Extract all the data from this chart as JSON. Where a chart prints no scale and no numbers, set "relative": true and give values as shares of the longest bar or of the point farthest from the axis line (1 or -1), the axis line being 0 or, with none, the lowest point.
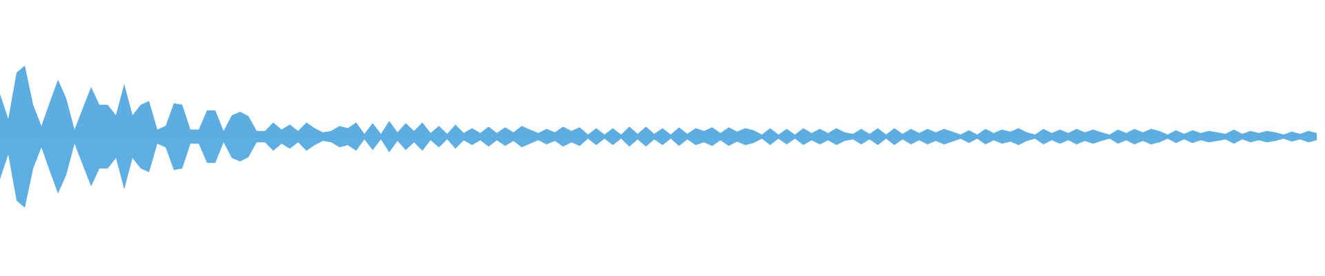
{
  "chart_data": {
    "type": "area",
    "relative": true,
    "categories": [
      null,
      null,
      null,
      null,
      null,
      null,
      null,
      null,
      null,
      null,
      null,
      null,
      null,
      null,
      null,
      null,
      null,
      null,
      null,
      null,
      null,
      null,
      null,
      null,
      null,
      null,
      null,
      null,
      null,
      null,
      null,
      null,
      null,
      null,
      null,
      null,
      null,
      null,
      null,
      null,
      null,
      null,
      null,
      null,
      null,
      null,
      null,
      null,
      null,
      null,
      null,
      null,
      null,
      null,
      null,
      null,
      null,
      null,
      null,
      null,
      null,
      null,
      null,
      null,
      null,
      null,
      null,
      null,
      null,
      null,
      null,
      null,
      null,
      null,
      null,
      null,
      null,
      null,
      null,
      null,
      null,
      null,
      null,
      null,
      null,
      null,
      null,
      null,
      null,
      null,
      null,
      null,
      null,
      null,
      null,
      null,
      null,
      null,
      null,
      null,
      null,
      null,
      null,
      null,
      null,
      null,
      null,
      null,
      null,
      null,
      null,
      null,
      null,
      null,
      null,
      null,
      null,
      null,
      null,
      null,
      null,
      null,
      null,
      null,
      null,
      null,
      null,
      null,
      null,
      null,
      null,
      null,
      null,
      null,
      null,
      null,
      null,
      null,
      null,
      null,
      null,
      null,
      null,
      null,
      null,
      null,
      null,
      null,
      null,
      null,
      null,
      null,
      null,
      null,
      null,
      null,
      null,
      null,
      null,
      null
    ],
    "series": [
      {
        "color": "#5dade2",
        "values": [
          0.6,
          0.25,
          0.9,
          1,
          0.45,
          0.15,
          0.48,
          0.8,
          0.54,
          0.1,
          0.4,
          0.7,
          0.45,
          0.45,
          0.3,
          0.74,
          0.3,
          0.45,
          0.5,
          0.1,
          0.15,
          0.47,
          0.45,
          0.1,
          0.1,
          0.37,
          0.37,
          0.08,
          0.3,
          0.35,
          0.29,
          0.08,
          0.08,
          0.2,
          0.1,
          0.17,
          0.08,
          0.2,
          0.12,
          0.06,
          0.08,
          0.15,
          0.12,
          0.2,
          0.04,
          0.19,
          0.04,
          0.22,
          0.06,
          0.19,
          0.08,
          0.2,
          0.05,
          0.15,
          0.04,
          0.17,
          0.05,
          0.12,
          0.05,
          0.14,
          0.05,
          0.13,
          0.06,
          0.15,
          0.1,
          0.05,
          0.11,
          0.06,
          0.14,
          0.08,
          0.13,
          0.03,
          0.12,
          0.03,
          0.12,
          0.03,
          0.14,
          0.04,
          0.14,
          0.04,
          0.12,
          0.03,
          0.13,
          0.04,
          0.12,
          0.08,
          0.13,
          0.05,
          0.13,
          0.07,
          0.12,
          0.09,
          0.03,
          0.12,
          0.03,
          0.11,
          0.03,
          0.12,
          0.05,
          0.11,
          0.05,
          0.12,
          0.06,
          0.04,
          0.11,
          0.04,
          0.12,
          0.03,
          0.12,
          0.04,
          0.11,
          0.05,
          0.11,
          0.06,
          0.11,
          0.07,
          0.03,
          0.09,
          0.03,
          0.11,
          0.05,
          0.1,
          0.07,
          0.12,
          0.06,
          0.03,
          0.11,
          0.05,
          0.1,
          0.05,
          0.11,
          0.06,
          0.1,
          0.06,
          0.03,
          0.1,
          0.05,
          0.11,
          0.06,
          0.11,
          0.08,
          0.03,
          0.09,
          0.04,
          0.09,
          0.05,
          0.08,
          0.06,
          0.04,
          0.1,
          0.04,
          0.08,
          0.05,
          0.08,
          0.06,
          0.03,
          0.07,
          0.04,
          0.08,
          0.05
        ]
      },
      {
        "color": "#5caee3",
        "values": [
          -0.6,
          -0.25,
          -0.9,
          -1,
          -0.45,
          -0.15,
          -0.48,
          -0.8,
          -0.54,
          -0.1,
          -0.4,
          -0.7,
          -0.45,
          -0.45,
          -0.3,
          -0.74,
          -0.3,
          -0.45,
          -0.5,
          -0.1,
          -0.15,
          -0.47,
          -0.45,
          -0.1,
          -0.1,
          -0.37,
          -0.37,
          -0.08,
          -0.3,
          -0.35,
          -0.29,
          -0.08,
          -0.08,
          -0.2,
          -0.1,
          -0.17,
          -0.08,
          -0.2,
          -0.12,
          -0.06,
          -0.08,
          -0.15,
          -0.12,
          -0.2,
          -0.04,
          -0.19,
          -0.04,
          -0.22,
          -0.06,
          -0.19,
          -0.08,
          -0.2,
          -0.05,
          -0.15,
          -0.04,
          -0.17,
          -0.05,
          -0.12,
          -0.05,
          -0.14,
          -0.05,
          -0.13,
          -0.06,
          -0.15,
          -0.1,
          -0.05,
          -0.11,
          -0.06,
          -0.14,
          -0.08,
          -0.13,
          -0.03,
          -0.12,
          -0.03,
          -0.12,
          -0.03,
          -0.14,
          -0.04,
          -0.14,
          -0.04,
          -0.12,
          -0.03,
          -0.13,
          -0.04,
          -0.12,
          -0.08,
          -0.13,
          -0.05,
          -0.13,
          -0.07,
          -0.12,
          -0.09,
          -0.03,
          -0.12,
          -0.03,
          -0.11,
          -0.03,
          -0.12,
          -0.05,
          -0.11,
          -0.05,
          -0.12,
          -0.06,
          -0.04,
          -0.11,
          -0.04,
          -0.12,
          -0.03,
          -0.12,
          -0.04,
          -0.11,
          -0.05,
          -0.11,
          -0.06,
          -0.11,
          -0.07,
          -0.03,
          -0.09,
          -0.03,
          -0.11,
          -0.05,
          -0.1,
          -0.07,
          -0.12,
          -0.06,
          -0.03,
          -0.11,
          -0.05,
          -0.1,
          -0.05,
          -0.11,
          -0.06,
          -0.1,
          -0.06,
          -0.03,
          -0.1,
          -0.05,
          -0.11,
          -0.06,
          -0.11,
          -0.08,
          -0.03,
          -0.09,
          -0.04,
          -0.09,
          -0.05,
          -0.08,
          -0.06,
          -0.04,
          -0.1,
          -0.04,
          -0.08,
          -0.05,
          -0.08,
          -0.06,
          -0.03,
          -0.07,
          -0.04,
          -0.08,
          -0.05
        ]
      }
    ]
  }
}
